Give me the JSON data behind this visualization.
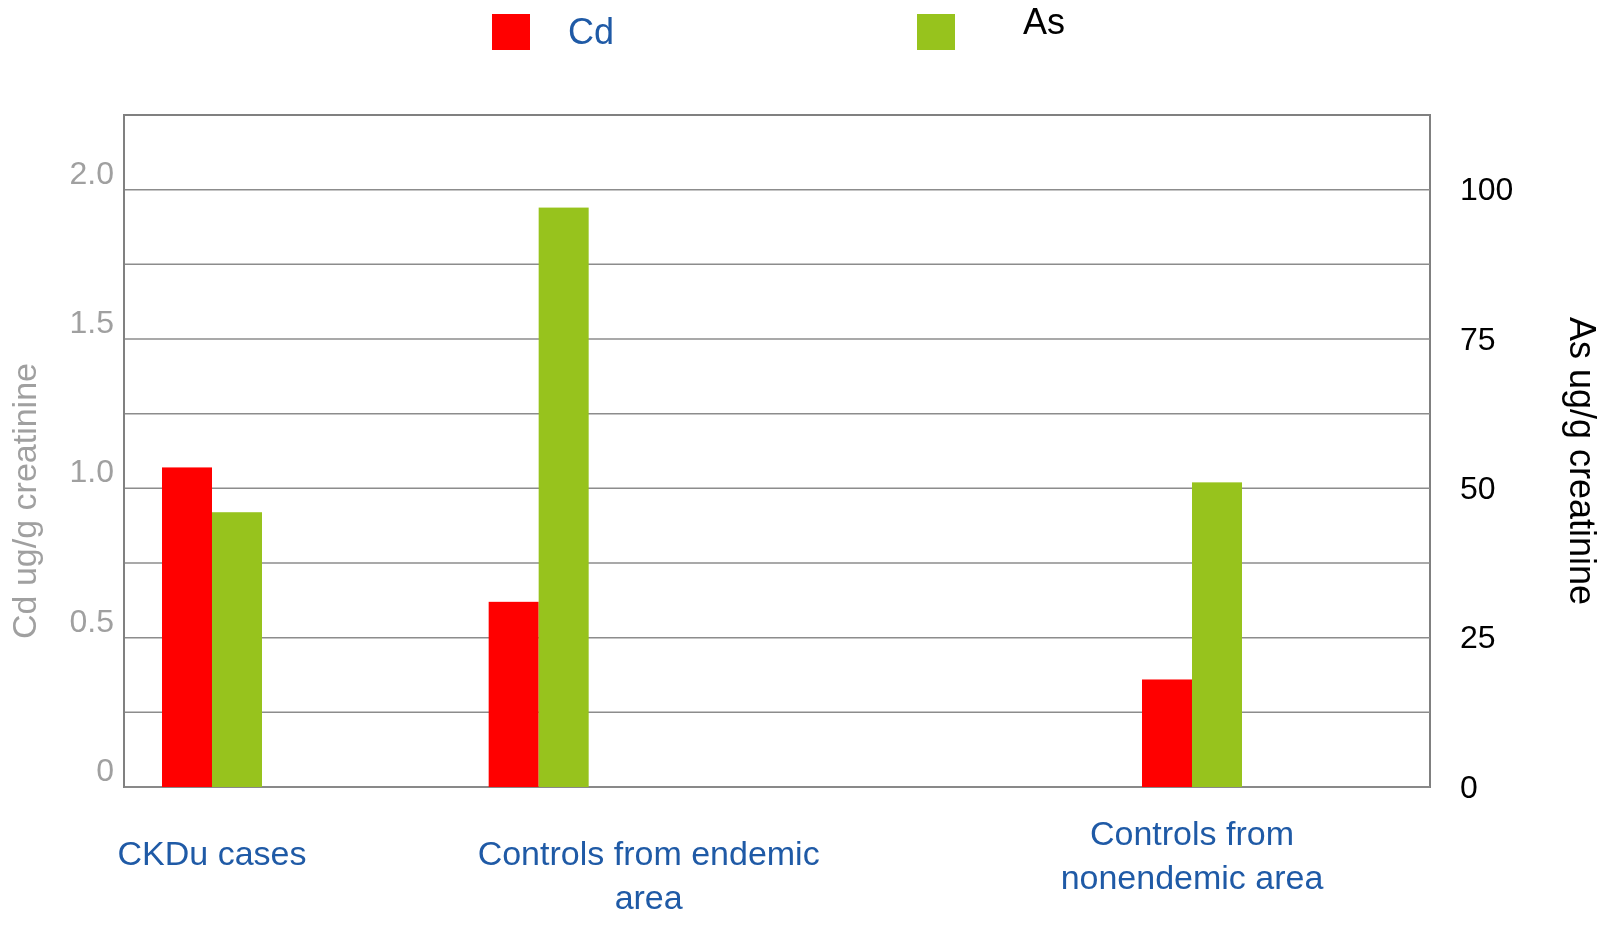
{
  "chart_data": {
    "type": "bar",
    "ylabel": "Cd ug/g   creatinine",
    "y2label": "As ug/g creatinine",
    "categories": [
      "CKDu cases",
      "Controls from  endemic area",
      null,
      "Controls from nonendemic area"
    ],
    "series": [
      {
        "name": "Cd",
        "color": "#ff0000",
        "values": [
          1.07,
          0.62,
          null,
          0.36
        ]
      },
      {
        "name": "As",
        "color": "#97c31d",
        "axis": "y2",
        "values": [
          46,
          97,
          null,
          51
        ]
      }
    ],
    "ylim": [
      0,
      2.25
    ],
    "yticks": [
      0,
      {
        "value": 0.25,
        "label": null
      },
      0.5,
      {
        "value": 0.75,
        "label": null
      },
      "1.0",
      {
        "value": 1.25,
        "label": null
      },
      1.5,
      {
        "value": 1.75,
        "label": null
      },
      "2.0"
    ],
    "y2lim": [
      0,
      112.5
    ],
    "y2ticks": [
      0,
      25,
      50,
      75,
      100
    ],
    "grid": "y",
    "legend": "top"
  }
}
